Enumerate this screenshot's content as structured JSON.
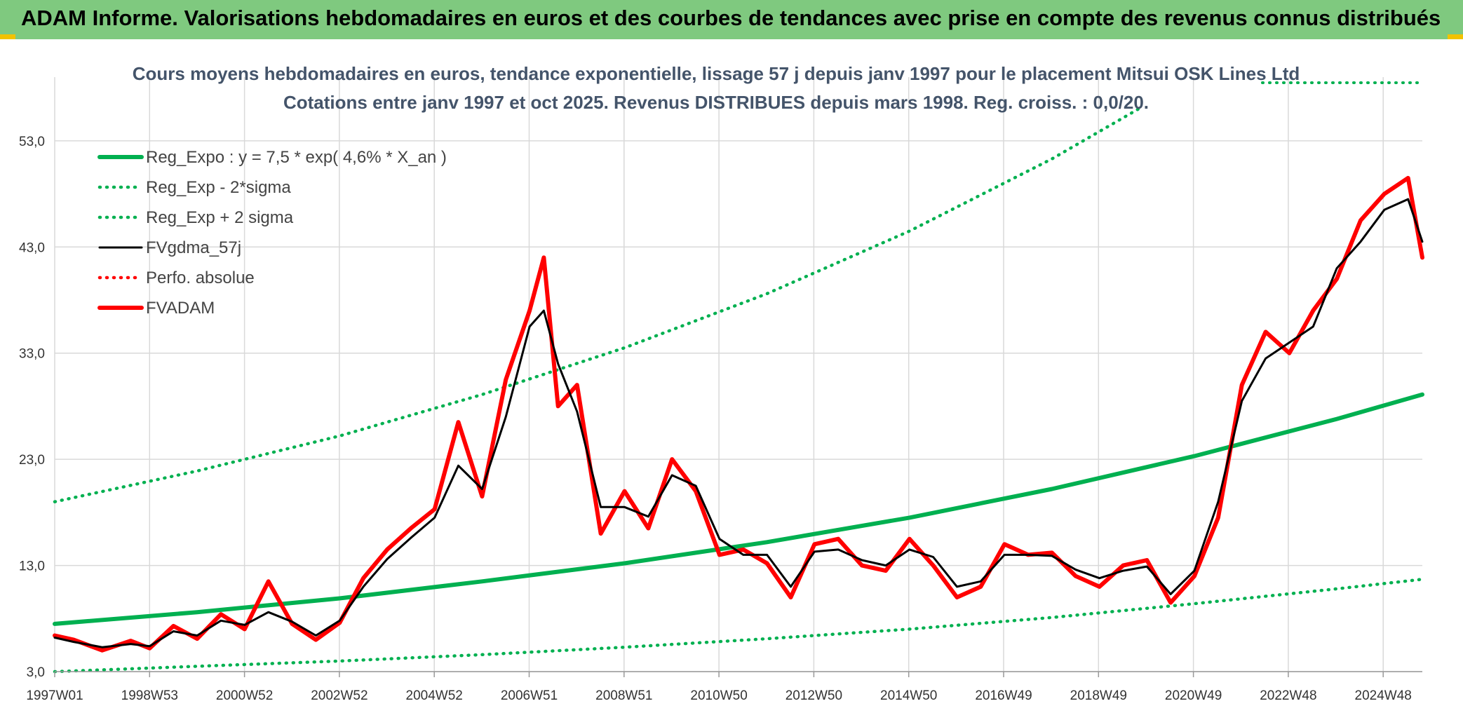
{
  "banner": {
    "title": "ADAM Informe. Valorisations hebdomadaires en euros et des courbes de tendances avec prise en compte des revenus connus distribués"
  },
  "colors": {
    "banner_bg": "#7fc97f",
    "regression": "#00b050",
    "smoothed": "#000000",
    "price": "#ff0000",
    "grid": "#d9d9d9"
  },
  "chart_data": {
    "type": "line",
    "title": "Cours moyens hebdomadaires en euros, tendance exponentielle, lissage 57 j depuis janv 1997 pour le placement Mitsui OSK Lines Ltd",
    "subtitle": "Cotations entre janv 1997 et oct 2025. Revenus DISTRIBUES depuis mars 1998. Reg. croiss. : 0,0/20.",
    "xlabel": "",
    "ylabel": "",
    "ylim": [
      3,
      59
    ],
    "y_ticks": [
      "3,0",
      "13,0",
      "23,0",
      "33,0",
      "43,0",
      "53,0"
    ],
    "x_ticks": [
      "1997W01",
      "1998W53",
      "2000W52",
      "2002W52",
      "2004W52",
      "2006W51",
      "2008W51",
      "2010W50",
      "2012W50",
      "2014W50",
      "2016W49",
      "2018W49",
      "2020W49",
      "2022W48",
      "2024W48"
    ],
    "grid": true,
    "legend_position": "top-left",
    "series": [
      {
        "name": "Reg_Expo : y = 7,5 * exp( 4,6% *  X_an )",
        "style": "solid-thick",
        "color": "#00b050",
        "x": [
          1997.0,
          2000.0,
          2003.0,
          2006.0,
          2009.0,
          2012.0,
          2015.0,
          2018.0,
          2021.0,
          2024.0,
          2025.8
        ],
        "y": [
          7.5,
          8.6,
          9.9,
          11.5,
          13.2,
          15.2,
          17.5,
          20.2,
          23.3,
          26.8,
          29.1
        ]
      },
      {
        "name": "Reg_Exp - 2*sigma",
        "style": "dotted",
        "color": "#00b050",
        "x": [
          1997.0,
          2000.0,
          2003.0,
          2006.0,
          2009.0,
          2012.0,
          2015.0,
          2018.0,
          2021.0,
          2024.0,
          2025.8
        ],
        "y": [
          3.0,
          3.5,
          4.0,
          4.6,
          5.3,
          6.1,
          7.0,
          8.1,
          9.4,
          10.8,
          11.7
        ]
      },
      {
        "name": "Reg_Exp + 2 sigma",
        "style": "dotted",
        "color": "#00b050",
        "x": [
          1997.0,
          2000.0,
          2003.0,
          2006.0,
          2009.0,
          2012.0,
          2015.0,
          2018.0,
          2019.9
        ],
        "y": [
          19.0,
          21.9,
          25.2,
          29.1,
          33.5,
          38.6,
          44.5,
          51.3,
          56.2
        ]
      },
      {
        "name": "FVgdma_57j",
        "style": "solid",
        "color": "#000000",
        "x": [
          1997.0,
          1997.4,
          1998.0,
          1998.6,
          1999.0,
          1999.5,
          2000.0,
          2000.5,
          2001.0,
          2001.5,
          2002.0,
          2002.5,
          2003.0,
          2003.5,
          2004.0,
          2004.5,
          2005.0,
          2005.5,
          2006.0,
          2006.5,
          2007.0,
          2007.3,
          2007.6,
          2008.0,
          2008.5,
          2009.0,
          2009.5,
          2010.0,
          2010.5,
          2011.0,
          2011.5,
          2012.0,
          2012.5,
          2013.0,
          2013.5,
          2014.0,
          2014.5,
          2015.0,
          2015.5,
          2016.0,
          2016.5,
          2017.0,
          2017.5,
          2018.0,
          2018.5,
          2019.0,
          2019.5,
          2020.0,
          2020.5,
          2021.0,
          2021.5,
          2022.0,
          2022.5,
          2023.0,
          2023.5,
          2024.0,
          2024.5,
          2025.0,
          2025.5,
          2025.8
        ],
        "y": [
          6.2,
          5.8,
          5.3,
          5.6,
          5.4,
          6.8,
          6.4,
          7.8,
          7.4,
          8.6,
          7.7,
          6.4,
          7.8,
          11.0,
          13.6,
          15.6,
          17.5,
          22.4,
          20.2,
          27.0,
          35.5,
          37.0,
          32.0,
          27.5,
          18.5,
          18.5,
          17.6,
          21.5,
          20.5,
          15.5,
          14.0,
          14.0,
          11.0,
          14.3,
          14.5,
          13.5,
          13.0,
          14.5,
          13.8,
          11.0,
          11.5,
          14.0,
          14.0,
          13.9,
          12.6,
          11.8,
          12.5,
          12.9,
          10.3,
          12.5,
          19.0,
          28.5,
          32.5,
          34.0,
          35.5,
          41.0,
          43.5,
          46.5,
          47.5,
          43.5
        ]
      },
      {
        "name": "Perfo. absolue",
        "style": "dotted",
        "color": "#ff0000",
        "x": [],
        "y": []
      },
      {
        "name": "FVADAM",
        "style": "solid-thick",
        "color": "#ff0000",
        "x": [
          1997.0,
          1997.4,
          1998.0,
          1998.6,
          1999.0,
          1999.5,
          2000.0,
          2000.5,
          2001.0,
          2001.5,
          2002.0,
          2002.5,
          2003.0,
          2003.5,
          2004.0,
          2004.5,
          2005.0,
          2005.5,
          2006.0,
          2006.5,
          2007.0,
          2007.3,
          2007.6,
          2008.0,
          2008.5,
          2009.0,
          2009.5,
          2010.0,
          2010.5,
          2011.0,
          2011.5,
          2012.0,
          2012.5,
          2013.0,
          2013.5,
          2014.0,
          2014.5,
          2015.0,
          2015.5,
          2016.0,
          2016.5,
          2017.0,
          2017.5,
          2018.0,
          2018.5,
          2019.0,
          2019.5,
          2020.0,
          2020.5,
          2021.0,
          2021.5,
          2022.0,
          2022.5,
          2023.0,
          2023.5,
          2024.0,
          2024.5,
          2025.0,
          2025.5,
          2025.8
        ],
        "y": [
          6.4,
          6.0,
          5.0,
          5.9,
          5.2,
          7.3,
          6.1,
          8.4,
          7.0,
          11.5,
          7.5,
          6.0,
          7.6,
          11.8,
          14.5,
          16.5,
          18.3,
          26.5,
          19.5,
          30.5,
          37.0,
          42.0,
          28.0,
          30.0,
          16.0,
          20.0,
          16.5,
          23.0,
          20.0,
          14.0,
          14.5,
          13.2,
          10.0,
          15.0,
          15.5,
          13.0,
          12.5,
          15.5,
          13.0,
          10.0,
          11.0,
          15.0,
          14.0,
          14.2,
          12.0,
          11.0,
          13.0,
          13.5,
          9.5,
          12.0,
          17.5,
          30.0,
          35.0,
          33.0,
          37.0,
          40.0,
          45.5,
          48.0,
          49.5,
          42.0
        ]
      }
    ]
  }
}
